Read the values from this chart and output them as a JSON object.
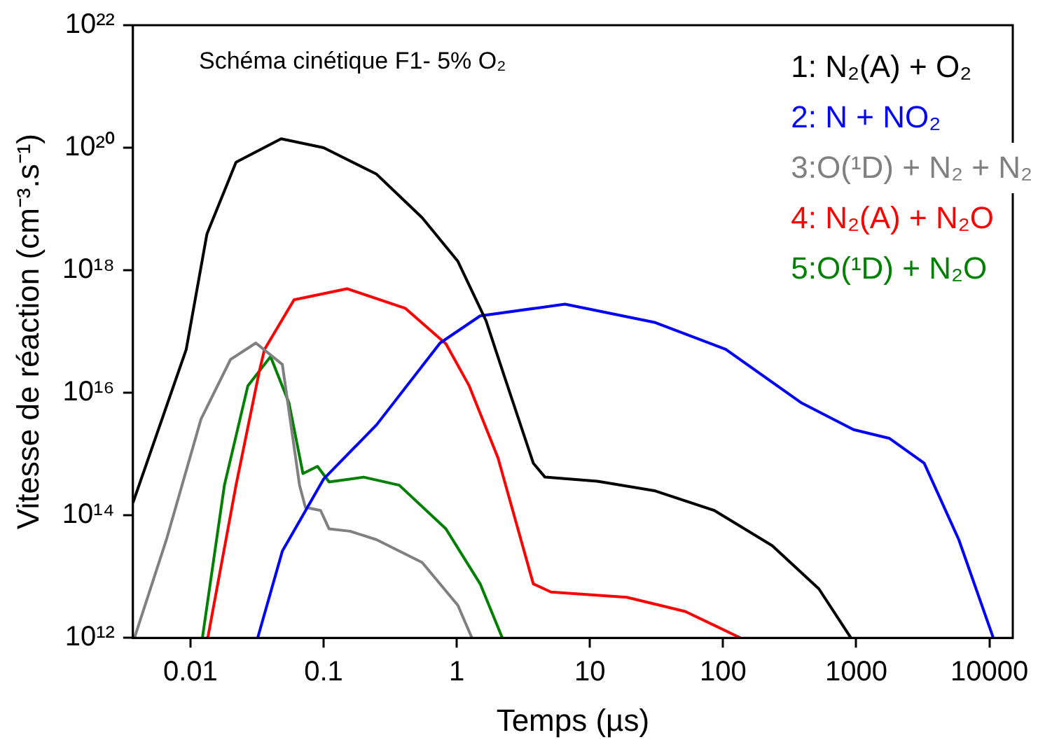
{
  "chart_data": {
    "type": "line",
    "xlabel": "Temps (µs)",
    "ylabel": "Vitesse de réaction (cm⁻³.s⁻¹)",
    "log": "xy",
    "marker": "none",
    "line_style": "solid",
    "grid": false,
    "legend": "top right",
    "annotations": [
      "Schéma cinétique F1- 5% O₂"
    ],
    "xlim": [
      0.0037,
      15000
    ],
    "xticks": [
      0.01,
      0.1,
      1,
      10,
      100,
      1000,
      10000
    ],
    "ylim": [
      1000000000000.0,
      1e+22
    ],
    "yticks": [
      {
        "value": 1000000000000.0,
        "label": "10¹²"
      },
      {
        "value": 100000000000000.0,
        "label": "10¹⁴"
      },
      {
        "value": 1e+16,
        "label": "10¹⁶"
      },
      {
        "value": 1e+18,
        "label": "10¹⁸"
      },
      {
        "value": 1e+20,
        "label": "10²⁰"
      },
      {
        "value": 1e+22,
        "label": "10²²"
      }
    ],
    "series": [
      {
        "name": "1: N₂(A) + O₂",
        "color": "#000000",
        "x": [
          0.0037,
          0.0093,
          0.0133,
          0.022,
          0.048,
          0.1,
          0.25,
          0.55,
          1.02,
          1.66,
          2.27,
          3.76,
          4.6,
          11.4,
          31,
          86,
          234,
          525,
          912
        ],
        "values": [
          160000000000000.0,
          5.1e+16,
          3.9e+18,
          5.8e+19,
          1.4e+20,
          1e+20,
          3.7e+19,
          7.2e+18,
          1.4e+18,
          1.5e+17,
          1.9e+16,
          710000000000000.0,
          420000000000000.0,
          360000000000000.0,
          250000000000000.0,
          120000000000000.0,
          32000000000000.0,
          6300000000000.0,
          1000000000000.0
        ]
      },
      {
        "name": "2: N + NO₂",
        "color": "#0000ff",
        "x": [
          0.032,
          0.049,
          0.1,
          0.25,
          0.75,
          1.5,
          6.5,
          31,
          105,
          390,
          955,
          1780,
          3240,
          5900,
          10700
        ],
        "values": [
          1000000000000.0,
          26000000000000.0,
          390000000000000.0,
          3000000000000000.0,
          6.5e+16,
          1.8e+17,
          2.8e+17,
          1.4e+17,
          5.1e+16,
          6800000000000000.0,
          2500000000000000.0,
          1800000000000000.0,
          710000000000000.0,
          40000000000000.0,
          1000000000000.0
        ]
      },
      {
        "name": "3:O(¹D) + N₂ + N₂",
        "color": "#808080",
        "x": [
          0.0038,
          0.0066,
          0.012,
          0.02,
          0.031,
          0.049,
          0.066,
          0.073,
          0.095,
          0.11,
          0.158,
          0.25,
          0.55,
          1.02,
          1.3
        ],
        "values": [
          1000000000000.0,
          40000000000000.0,
          3700000000000000.0,
          3.5e+16,
          6.5e+16,
          2.9e+16,
          310000000000000.0,
          135000000000000.0,
          120000000000000.0,
          60000000000000.0,
          55000000000000.0,
          40000000000000.0,
          17000000000000.0,
          3400000000000.0,
          1000000000000.0
        ]
      },
      {
        "name": "4: N₂(A) + N₂O",
        "color": "#ff0000",
        "x": [
          0.0135,
          0.022,
          0.033,
          0.036,
          0.06,
          0.15,
          0.41,
          0.83,
          1.24,
          2.04,
          3.76,
          5.1,
          18.9,
          52,
          135
        ],
        "values": [
          1000000000000.0,
          310000000000000.0,
          2.3e+16,
          5.1e+16,
          3.3e+17,
          5e+17,
          2.4e+17,
          6.3e+16,
          1.3e+16,
          870000000000000.0,
          7600000000000.0,
          5600000000000.0,
          4600000000000.0,
          2700000000000.0,
          1000000000000.0
        ]
      },
      {
        "name": "5:O(¹D) + N₂O",
        "color": "#008000",
        "x": [
          0.0123,
          0.018,
          0.027,
          0.04,
          0.055,
          0.07,
          0.09,
          0.11,
          0.2,
          0.37,
          0.83,
          1.5,
          2.2
        ],
        "values": [
          1000000000000.0,
          310000000000000.0,
          1.3e+16,
          3.9e+16,
          6800000000000000.0,
          480000000000000.0,
          630000000000000.0,
          350000000000000.0,
          420000000000000.0,
          310000000000000.0,
          60000000000000.0,
          7600000000000.0,
          1000000000000.0
        ]
      }
    ]
  }
}
